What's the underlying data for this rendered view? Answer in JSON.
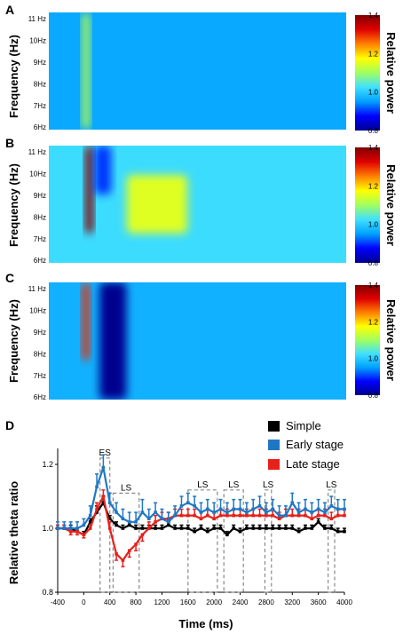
{
  "panels": [
    {
      "letter": "A",
      "ylabel": "Frequency (Hz)",
      "yticks": [
        "11 Hz",
        "10Hz",
        "9Hz",
        "8Hz",
        "7Hz",
        "6Hz"
      ],
      "colorbar": {
        "label": "Relative power",
        "ticks": [
          "1.4",
          "1.2",
          "1.0",
          "0.8"
        ]
      }
    },
    {
      "letter": "B",
      "ylabel": "Frequency (Hz)",
      "yticks": [
        "11 Hz",
        "10Hz",
        "9Hz",
        "8Hz",
        "7Hz",
        "6Hz"
      ],
      "colorbar": {
        "label": "Relative power",
        "ticks": [
          "1.4",
          "1.2",
          "1.0",
          "0.8"
        ]
      }
    },
    {
      "letter": "C",
      "ylabel": "Frequency (Hz)",
      "yticks": [
        "11 Hz",
        "10Hz",
        "9Hz",
        "8Hz",
        "7Hz",
        "6Hz"
      ],
      "colorbar": {
        "label": "Relative power",
        "ticks": [
          "1.4",
          "1.2",
          "1.0",
          "0.8"
        ]
      }
    },
    {
      "letter": "D"
    }
  ],
  "colors": {
    "simple": "#000000",
    "early": "#1f77c4",
    "late": "#e8201a",
    "box": "#888888",
    "colormap": [
      "#00008f",
      "#0000ff",
      "#00a0ff",
      "#40e0ff",
      "#a0ff60",
      "#ffff00",
      "#ff8000",
      "#e00000",
      "#800000"
    ]
  },
  "chart_data": [
    {
      "type": "heatmap",
      "panel": "A",
      "ylabel": "Frequency (Hz)",
      "yticks": [
        "11 Hz",
        "10Hz",
        "9Hz",
        "8Hz",
        "7Hz",
        "6Hz"
      ],
      "colorbar": {
        "label": "Relative power",
        "range": [
          0.8,
          1.4
        ],
        "ticks": [
          1.4,
          1.2,
          1.0,
          0.8
        ]
      },
      "background": 0.96,
      "features": [
        {
          "time_center": 150,
          "time_width": 110,
          "freq_range": [
            6,
            12
          ],
          "value": 1.12
        }
      ]
    },
    {
      "type": "heatmap",
      "panel": "B",
      "ylabel": "Frequency (Hz)",
      "yticks": [
        "11 Hz",
        "10Hz",
        "9Hz",
        "8Hz",
        "7Hz",
        "6Hz"
      ],
      "colorbar": {
        "label": "Relative power",
        "range": [
          0.8,
          1.4
        ],
        "ticks": [
          1.4,
          1.2,
          1.0,
          0.8
        ]
      },
      "background": 1.02,
      "features": [
        {
          "time_center": 200,
          "time_width": 120,
          "freq_range": [
            7.5,
            12
          ],
          "value": 1.4
        },
        {
          "time_center": 400,
          "time_width": 250,
          "freq_range": [
            9.5,
            12
          ],
          "value": 0.9
        },
        {
          "time_center": 1200,
          "time_width": 900,
          "freq_range": [
            7.5,
            10.5
          ],
          "value": 1.15
        }
      ]
    },
    {
      "type": "heatmap",
      "panel": "C",
      "ylabel": "Frequency (Hz)",
      "yticks": [
        "11 Hz",
        "10Hz",
        "9Hz",
        "8Hz",
        "7Hz",
        "6Hz"
      ],
      "colorbar": {
        "label": "Relative power",
        "range": [
          0.8,
          1.4
        ],
        "ticks": [
          1.4,
          1.2,
          1.0,
          0.8
        ]
      },
      "background": 0.97,
      "features": [
        {
          "time_center": 150,
          "time_width": 110,
          "freq_range": [
            8,
            12
          ],
          "value": 1.3
        },
        {
          "time_center": 550,
          "time_width": 400,
          "freq_range": [
            6,
            12
          ],
          "value": 0.8
        }
      ]
    },
    {
      "type": "line",
      "panel": "D",
      "xlabel": "Time (ms)",
      "ylabel": "Relative theta ratio",
      "xlim": [
        -400,
        4000
      ],
      "ylim": [
        0.8,
        1.25
      ],
      "xticks": [
        -400,
        0,
        400,
        800,
        1200,
        1600,
        2000,
        2400,
        2800,
        3200,
        3600,
        4000
      ],
      "yticks": [
        0.8,
        1.0,
        1.2
      ],
      "x": [
        -400,
        -300,
        -200,
        -100,
        0,
        100,
        200,
        300,
        400,
        500,
        600,
        700,
        800,
        900,
        1000,
        1100,
        1200,
        1300,
        1400,
        1500,
        1600,
        1700,
        1800,
        1900,
        2000,
        2100,
        2200,
        2300,
        2400,
        2500,
        2600,
        2700,
        2800,
        2900,
        3000,
        3100,
        3200,
        3300,
        3400,
        3500,
        3600,
        3700,
        3800,
        3900,
        4000
      ],
      "series": [
        {
          "name": "Simple",
          "color": "#000000",
          "values": [
            1.0,
            1.0,
            1.0,
            0.99,
            0.98,
            1.02,
            1.05,
            1.08,
            1.03,
            1.01,
            1.0,
            1.01,
            1.0,
            1.0,
            1.0,
            1.0,
            1.0,
            1.01,
            1.0,
            1.0,
            1.0,
            0.99,
            1.0,
            0.99,
            1.0,
            1.0,
            0.98,
            1.0,
            0.99,
            1.0,
            1.0,
            1.0,
            1.0,
            1.0,
            1.0,
            1.0,
            1.0,
            0.99,
            1.0,
            1.0,
            1.02,
            1.0,
            1.0,
            0.99,
            0.99
          ],
          "error": [
            0.01,
            0.01,
            0.01,
            0.01,
            0.01,
            0.01,
            0.02,
            0.02,
            0.01,
            0.01,
            0.01,
            0.01,
            0.01,
            0.01,
            0.01,
            0.01,
            0.01,
            0.01,
            0.01,
            0.01,
            0.01,
            0.01,
            0.01,
            0.01,
            0.01,
            0.01,
            0.01,
            0.01,
            0.01,
            0.01,
            0.01,
            0.01,
            0.01,
            0.01,
            0.01,
            0.01,
            0.01,
            0.01,
            0.01,
            0.01,
            0.01,
            0.01,
            0.01,
            0.01,
            0.01
          ]
        },
        {
          "name": "Early stage",
          "color": "#1f77c4",
          "values": [
            1.0,
            1.0,
            1.0,
            1.0,
            1.01,
            1.04,
            1.13,
            1.19,
            1.08,
            1.05,
            1.03,
            1.02,
            1.02,
            1.05,
            1.03,
            1.05,
            1.03,
            1.02,
            1.04,
            1.07,
            1.08,
            1.07,
            1.05,
            1.06,
            1.05,
            1.06,
            1.05,
            1.06,
            1.06,
            1.05,
            1.06,
            1.07,
            1.05,
            1.06,
            1.04,
            1.04,
            1.08,
            1.05,
            1.06,
            1.05,
            1.06,
            1.05,
            1.07,
            1.06,
            1.06
          ],
          "error": [
            0.02,
            0.02,
            0.02,
            0.02,
            0.02,
            0.03,
            0.04,
            0.04,
            0.03,
            0.03,
            0.03,
            0.03,
            0.03,
            0.04,
            0.03,
            0.03,
            0.03,
            0.03,
            0.03,
            0.03,
            0.03,
            0.03,
            0.03,
            0.03,
            0.03,
            0.03,
            0.03,
            0.03,
            0.03,
            0.03,
            0.03,
            0.03,
            0.03,
            0.03,
            0.03,
            0.03,
            0.03,
            0.03,
            0.03,
            0.03,
            0.03,
            0.03,
            0.03,
            0.03,
            0.03
          ]
        },
        {
          "name": "Late stage",
          "color": "#e8201a",
          "values": [
            1.0,
            1.0,
            0.99,
            0.99,
            0.98,
            1.0,
            1.06,
            1.1,
            1.0,
            0.92,
            0.9,
            0.93,
            0.95,
            0.98,
            1.0,
            1.02,
            1.03,
            1.03,
            1.04,
            1.04,
            1.04,
            1.04,
            1.03,
            1.04,
            1.03,
            1.04,
            1.04,
            1.04,
            1.04,
            1.04,
            1.04,
            1.04,
            1.04,
            1.04,
            1.03,
            1.04,
            1.04,
            1.04,
            1.04,
            1.03,
            1.04,
            1.04,
            1.03,
            1.04,
            1.04
          ],
          "error": [
            0.01,
            0.01,
            0.01,
            0.01,
            0.01,
            0.01,
            0.02,
            0.02,
            0.02,
            0.02,
            0.02,
            0.02,
            0.02,
            0.02,
            0.02,
            0.02,
            0.02,
            0.02,
            0.02,
            0.02,
            0.02,
            0.02,
            0.02,
            0.02,
            0.02,
            0.02,
            0.02,
            0.02,
            0.02,
            0.02,
            0.02,
            0.02,
            0.02,
            0.02,
            0.02,
            0.02,
            0.02,
            0.02,
            0.02,
            0.02,
            0.02,
            0.02,
            0.02,
            0.02,
            0.02
          ]
        }
      ],
      "annotations": [
        {
          "label": "ES",
          "x_range": [
            250,
            400
          ],
          "y_range": [
            0.8,
            1.22
          ]
        },
        {
          "label": "LS",
          "x_range": [
            450,
            850
          ],
          "y_range": [
            0.8,
            1.11
          ]
        },
        {
          "label": "LS",
          "x_range": [
            1600,
            2050
          ],
          "y_range": [
            0.8,
            1.12
          ]
        },
        {
          "label": "LS",
          "x_range": [
            2150,
            2450
          ],
          "y_range": [
            0.8,
            1.12
          ]
        },
        {
          "label": "LS",
          "x_range": [
            2780,
            2880
          ],
          "y_range": [
            0.8,
            1.12
          ]
        },
        {
          "label": "LS",
          "x_range": [
            3750,
            3850
          ],
          "y_range": [
            0.8,
            1.12
          ]
        }
      ],
      "legend": {
        "position": "top-right",
        "entries": [
          "Simple",
          "Early stage",
          "Late stage"
        ]
      }
    }
  ]
}
